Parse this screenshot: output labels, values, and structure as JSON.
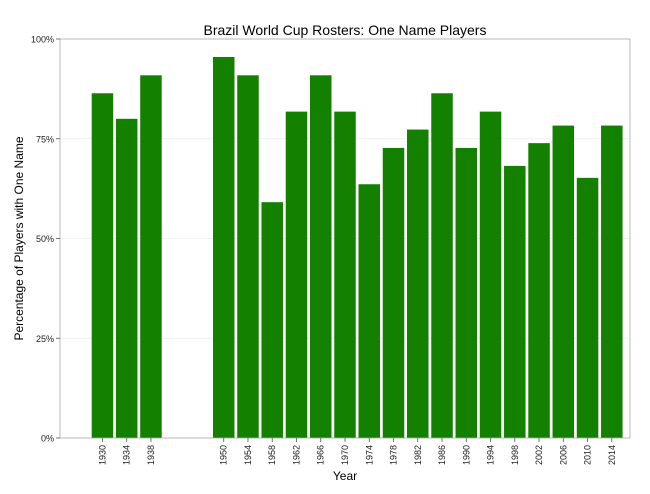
{
  "chart_data": {
    "type": "bar",
    "title": "Brazil World Cup Rosters: One Name Players",
    "xlabel": "Year",
    "ylabel": "Percentage of Players with One Name",
    "ylim": [
      0,
      100
    ],
    "y_ticks": [
      "0%",
      "25%",
      "50%",
      "75%",
      "100%"
    ],
    "y_tick_values": [
      0,
      25,
      50,
      75,
      100
    ],
    "x_range": [
      1923,
      2017
    ],
    "grid": true,
    "bar_color": "#138000",
    "categories": [
      "1930",
      "1934",
      "1938",
      "1950",
      "1954",
      "1958",
      "1962",
      "1966",
      "1970",
      "1974",
      "1978",
      "1982",
      "1986",
      "1990",
      "1994",
      "1998",
      "2002",
      "2006",
      "2010",
      "2014"
    ],
    "x": [
      1930,
      1934,
      1938,
      1950,
      1954,
      1958,
      1962,
      1966,
      1970,
      1974,
      1978,
      1982,
      1986,
      1990,
      1994,
      1998,
      2002,
      2006,
      2010,
      2014
    ],
    "values": [
      86.4,
      80.0,
      90.9,
      95.5,
      90.9,
      59.1,
      81.8,
      90.9,
      81.8,
      63.6,
      72.7,
      77.3,
      86.4,
      72.7,
      81.8,
      68.2,
      73.9,
      78.3,
      65.2,
      78.3
    ]
  }
}
